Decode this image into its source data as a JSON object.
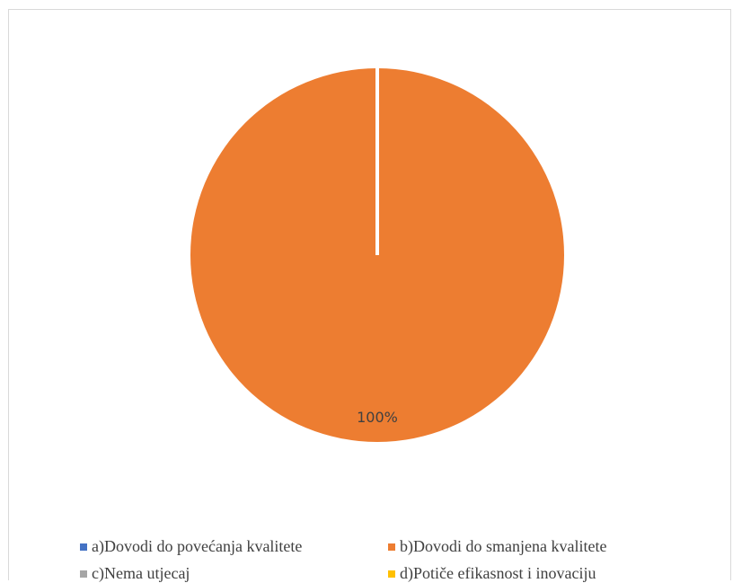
{
  "chart_data": {
    "type": "pie",
    "categories": [
      "a)Dovodi do povećanja kvalitete",
      "b)Dovodi do smanjena kvalitete",
      "c)Nema utjecaj",
      "d)Potiče efikasnost i inovaciju"
    ],
    "values": [
      0,
      100,
      0,
      0
    ],
    "unit": "%",
    "colors": [
      "#4472C4",
      "#ED7D31",
      "#A5A5A5",
      "#FFC000"
    ],
    "data_labels": [
      "",
      "100%",
      "",
      ""
    ],
    "title": "",
    "legend_position": "bottom"
  }
}
